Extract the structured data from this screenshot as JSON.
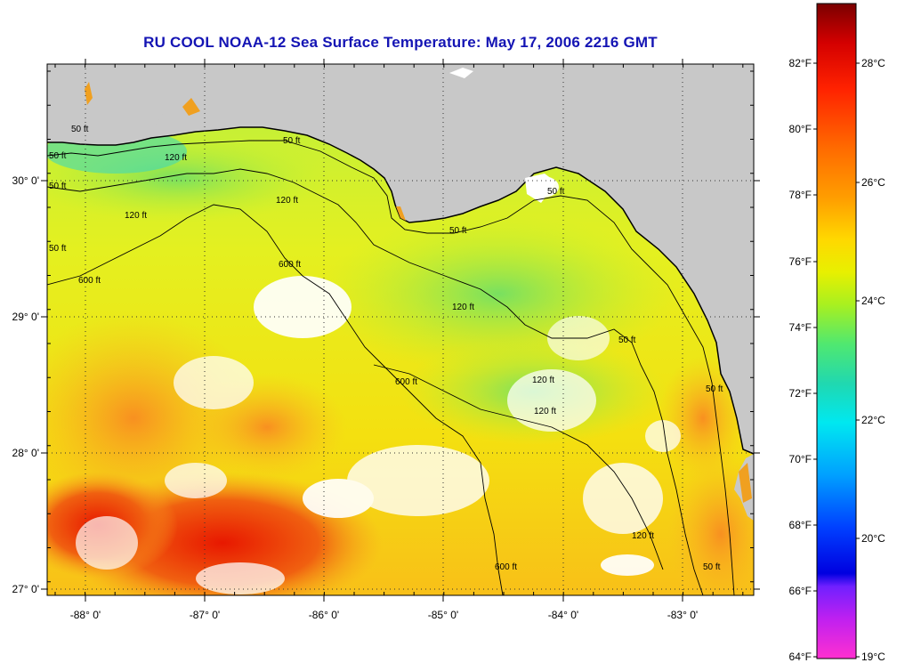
{
  "title": "RU COOL  NOAA-12  Sea Surface Temperature:  May 17, 2006 2216 GMT",
  "longitude_ticks": [
    "-88° 0'",
    "-87° 0'",
    "-86° 0'",
    "-85° 0'",
    "-84° 0'",
    "-83° 0'"
  ],
  "latitude_ticks": [
    "30° 0'",
    "29° 0'",
    "28° 0'",
    "27° 0'"
  ],
  "colorbar": {
    "fahrenheit_ticks": [
      "82°F",
      "80°F",
      "78°F",
      "76°F",
      "74°F",
      "72°F",
      "70°F",
      "68°F",
      "66°F",
      "64°F"
    ],
    "celsius_ticks": [
      "28°C",
      "26°C",
      "24°C",
      "22°C",
      "20°C",
      "19°C"
    ],
    "colors": [
      "#7a0000",
      "#d40000",
      "#ff2200",
      "#ff6a00",
      "#ffa000",
      "#ffd800",
      "#e8f000",
      "#a8f020",
      "#50e870",
      "#20d8b0",
      "#00e8f0",
      "#00a0ff",
      "#0040ff",
      "#0000e0",
      "#7020ff",
      "#c020f0",
      "#ff30d0"
    ]
  },
  "contour_labels": [
    "50 ft",
    "50 ft",
    "50 ft",
    "50 ft",
    "50 ft",
    "50 ft",
    "50 ft",
    "50 ft",
    "120 ft",
    "120 ft",
    "120 ft",
    "120 ft",
    "120 ft",
    "600 ft",
    "600 ft",
    "600 ft",
    "600 ft",
    "120 ft",
    "50 ft",
    "120 ft",
    "50 ft"
  ],
  "colors": {
    "land": "#c8c8c8",
    "title": "#1414b4",
    "cloud": "#ffffff"
  }
}
